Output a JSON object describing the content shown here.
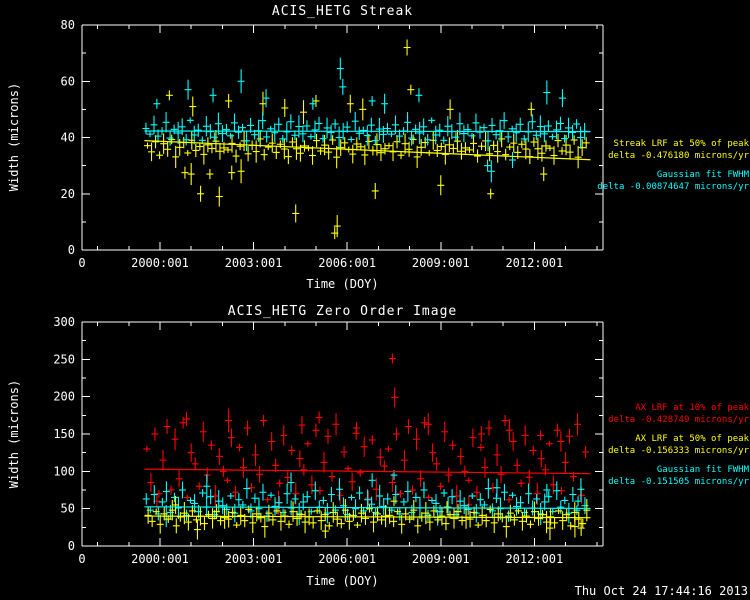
{
  "window": {
    "timestamp": "Thu Oct 24 17:44:16 2013",
    "background": "#000000"
  },
  "colors": {
    "axis": "#ffffff",
    "yellow": "#ffff00",
    "cyan": "#00ffff",
    "red": "#ff0000"
  },
  "chart_data": [
    {
      "type": "scatter",
      "title": "ACIS_HETG Streak",
      "xlabel": "Time (DOY)",
      "ylabel": "Width (microns)",
      "xlim": [
        1997.5,
        2014.2
      ],
      "ylim": [
        0,
        80
      ],
      "x_origin_label": "0",
      "x_minor": 1,
      "y_minor": 10,
      "xticks": [
        {
          "v": 2000,
          "label": "2000:001"
        },
        {
          "v": 2003,
          "label": "2003:001"
        },
        {
          "v": 2006,
          "label": "2006:001"
        },
        {
          "v": 2009,
          "label": "2009:001"
        },
        {
          "v": 2012,
          "label": "2012:001"
        }
      ],
      "yticks": [
        {
          "v": 0,
          "label": "0"
        },
        {
          "v": 20,
          "label": "20"
        },
        {
          "v": 40,
          "label": "40"
        },
        {
          "v": 60,
          "label": "60"
        },
        {
          "v": 80,
          "label": "80"
        }
      ],
      "annotations": [
        {
          "color": "#ffff00",
          "lines": [
            "Streak LRF at 50% of peak",
            "delta -0.476180 microns/yr"
          ]
        },
        {
          "color": "#00ffff",
          "lines": [
            "Gaussian fit FWHM",
            "delta -0.00874647 microns/yr"
          ]
        }
      ],
      "fit_lines": [
        {
          "color": "#ffff00",
          "x1": 1999.5,
          "y1": 38.9,
          "x2": 2013.8,
          "y2": 32.1
        },
        {
          "color": "#00ffff",
          "x1": 1999.5,
          "y1": 42.3,
          "x2": 2013.8,
          "y2": 42.1
        }
      ],
      "series": [
        {
          "name": "Streak LRF at 50% of peak",
          "color": "#ffff00",
          "x_start": 1999.6,
          "x_step": 0.129,
          "y": [
            37.1,
            34.9,
            38.5,
            33.7,
            37.8,
            35.8,
            39.3,
            33.1,
            36.5,
            38.2,
            34.5,
            39.0,
            35.4,
            36.8,
            34.0,
            37.4,
            36.1,
            38.7,
            35.1,
            36.3,
            35.6,
            37.9,
            33.4,
            36.9,
            38.8,
            34.2,
            37.2,
            35.0,
            39.5,
            33.9,
            36.6,
            38.0,
            34.7,
            37.6,
            35.9,
            33.2,
            38.4,
            36.0,
            34.4,
            37.0,
            36.2,
            33.6,
            38.9,
            35.2,
            37.3,
            34.8,
            39.1,
            33.0,
            36.4,
            38.1,
            35.7,
            34.1,
            37.7,
            36.7,
            33.8,
            38.6,
            35.3,
            37.5,
            34.6,
            36.0,
            37.1,
            34.9,
            38.5,
            33.7,
            37.8,
            35.8,
            39.3,
            33.1,
            36.5,
            38.2,
            34.5,
            39.0,
            35.4,
            36.8,
            34.0,
            37.4,
            36.1,
            38.7,
            35.1,
            36.3,
            35.6,
            37.9,
            33.4,
            36.9,
            38.8,
            34.2,
            37.2,
            35.0,
            39.5,
            33.9,
            36.6,
            38.0,
            34.7,
            37.6,
            35.9,
            33.2,
            38.4,
            36.0,
            34.4,
            37.0,
            36.2,
            33.6,
            38.9,
            35.2,
            37.3,
            34.8,
            39.1,
            33.0,
            36.4,
            38.1
          ],
          "extra_points": [
            [
              2000.3,
              55
            ],
            [
              2001.05,
              51
            ],
            [
              2002.2,
              53
            ],
            [
              2003.3,
              52
            ],
            [
              2004.0,
              50.5
            ],
            [
              2005.0,
              53
            ],
            [
              2006.5,
              50
            ],
            [
              2007.92,
              72
            ],
            [
              2008.04,
              57
            ],
            [
              2009.3,
              50
            ],
            [
              2011.9,
              50
            ],
            [
              2004.6,
              49
            ],
            [
              2006.1,
              52
            ],
            [
              2000.8,
              27.5
            ],
            [
              2001.0,
              27
            ],
            [
              2001.3,
              20
            ],
            [
              2001.6,
              27
            ],
            [
              2001.9,
              19
            ],
            [
              2002.3,
              27.5
            ],
            [
              2002.6,
              28
            ],
            [
              2004.35,
              13
            ],
            [
              2005.6,
              6
            ],
            [
              2005.68,
              8.5
            ],
            [
              2006.9,
              21
            ],
            [
              2010.6,
              20
            ],
            [
              2009.0,
              23
            ],
            [
              2012.3,
              27
            ]
          ]
        },
        {
          "name": "Gaussian fit FWHM",
          "color": "#00ffff",
          "x_start": 1999.55,
          "x_step": 0.129,
          "y": [
            43.2,
            41.2,
            44.5,
            40.5,
            42.3,
            45.4,
            39.8,
            42.9,
            41.6,
            43.8,
            39.2,
            46.1,
            40.9,
            42.6,
            39.0,
            44.0,
            42.1,
            40.1,
            44.9,
            41.4,
            42.8,
            40.6,
            45.2,
            41.9,
            43.5,
            38.8,
            44.3,
            41.0,
            42.4,
            46.0,
            40.2,
            43.1,
            41.7,
            44.7,
            39.5,
            42.0,
            45.6,
            40.8,
            43.9,
            41.3,
            44.1,
            40.3,
            42.7,
            45.0,
            39.6,
            43.4,
            41.8,
            44.8,
            40.0,
            42.2,
            43.7,
            39.3,
            45.8,
            41.5,
            42.5,
            40.7,
            44.4,
            38.9,
            43.0,
            41.1,
            43.2,
            41.2,
            44.5,
            40.5,
            42.3,
            45.4,
            39.8,
            42.9,
            41.6,
            43.8,
            39.2,
            46.1,
            40.9,
            42.6,
            39.0,
            44.0,
            42.1,
            40.1,
            44.9,
            41.4,
            42.8,
            40.6,
            45.2,
            41.9,
            43.5,
            38.8,
            44.3,
            41.0,
            42.4,
            46.0,
            40.2,
            43.1,
            41.7,
            44.7,
            39.5,
            42.0,
            45.6,
            40.8,
            43.9,
            41.3,
            44.1,
            40.3,
            42.7,
            45.0,
            39.6,
            43.4,
            41.8,
            44.8,
            40.0,
            42.2
          ],
          "extra_points": [
            [
              1999.9,
              52
            ],
            [
              2000.9,
              57
            ],
            [
              2001.7,
              55
            ],
            [
              2002.6,
              60
            ],
            [
              2003.4,
              54
            ],
            [
              2004.9,
              52
            ],
            [
              2005.78,
              64.5
            ],
            [
              2005.86,
              58
            ],
            [
              2006.8,
              53
            ],
            [
              2007.2,
              52
            ],
            [
              2008.3,
              55
            ],
            [
              2012.4,
              56
            ],
            [
              2012.9,
              54
            ],
            [
              2010.5,
              30
            ],
            [
              2010.62,
              28
            ],
            [
              2011.3,
              32
            ]
          ]
        }
      ]
    },
    {
      "type": "scatter",
      "title": "ACIS_HETG Zero Order Image",
      "xlabel": "Time (DOY)",
      "ylabel": "Width (microns)",
      "xlim": [
        1997.5,
        2014.2
      ],
      "ylim": [
        0,
        300
      ],
      "x_origin_label": "0",
      "x_minor": 1,
      "y_minor": 25,
      "xticks": [
        {
          "v": 2000,
          "label": "2000:001"
        },
        {
          "v": 2003,
          "label": "2003:001"
        },
        {
          "v": 2006,
          "label": "2006:001"
        },
        {
          "v": 2009,
          "label": "2009:001"
        },
        {
          "v": 2012,
          "label": "2012:001"
        }
      ],
      "yticks": [
        {
          "v": 0,
          "label": "0"
        },
        {
          "v": 50,
          "label": "50"
        },
        {
          "v": 100,
          "label": "100"
        },
        {
          "v": 150,
          "label": "150"
        },
        {
          "v": 200,
          "label": "200"
        },
        {
          "v": 250,
          "label": "250"
        },
        {
          "v": 300,
          "label": "300"
        }
      ],
      "annotations": [
        {
          "color": "#ff0000",
          "lines": [
            "AX LRF at 10% of peak",
            "delta -0.428749 microns/yr"
          ]
        },
        {
          "color": "#ffff00",
          "lines": [
            "AX LRF at 50% of peak",
            "delta -0.156333 microns/yr"
          ]
        },
        {
          "color": "#00ffff",
          "lines": [
            "Gaussian fit FWHM",
            "delta -0.151505 microns/yr"
          ]
        }
      ],
      "fit_lines": [
        {
          "color": "#ff0000",
          "x1": 1999.5,
          "y1": 103,
          "x2": 2013.8,
          "y2": 96.9
        },
        {
          "color": "#00ffff",
          "x1": 1999.5,
          "y1": 52.5,
          "x2": 2013.8,
          "y2": 50.3
        },
        {
          "color": "#ffff00",
          "x1": 1999.5,
          "y1": 40.1,
          "x2": 2013.8,
          "y2": 37.9
        }
      ],
      "series": [
        {
          "name": "AX LRF at 10% of peak",
          "color": "#ff0000",
          "x_start": 1999.58,
          "x_step": 0.129,
          "y": [
            130,
            85,
            150,
            70,
            115,
            160,
            75,
            143,
            90,
            165,
            65,
            125,
            110,
            80,
            153,
            95,
            135,
            67,
            120,
            100,
            88,
            145,
            72,
            132,
            105,
            158,
            78,
            122,
            96,
            168,
            62,
            140,
            108,
            84,
            148,
            92,
            128,
            70,
            117,
            102,
            137,
            82,
            155,
            74,
            112,
            147,
            93,
            163,
            68,
            126,
            104,
            86,
            151,
            98,
            133,
            64,
            142,
            76,
            119,
            107,
            130,
            85,
            150,
            70,
            115,
            160,
            75,
            143,
            90,
            165,
            65,
            125,
            110,
            80,
            153,
            95,
            135,
            67,
            120,
            100,
            88,
            145,
            72,
            132,
            105,
            158,
            78,
            122,
            96,
            168,
            62,
            140,
            108,
            84,
            148,
            92,
            128,
            70,
            117,
            102,
            137,
            82,
            155,
            74,
            112,
            147,
            93,
            163,
            68,
            126
          ],
          "extra_points": [
            [
              2007.45,
              251
            ],
            [
              2007.52,
              199
            ],
            [
              2000.85,
              170
            ],
            [
              2002.2,
              168
            ],
            [
              2004.55,
              162
            ],
            [
              2006.3,
              158
            ],
            [
              2008.6,
              163
            ],
            [
              2010.3,
              150
            ],
            [
              2012.2,
              148
            ],
            [
              2012.85,
              140
            ],
            [
              1999.9,
              60
            ],
            [
              2003.8,
              58
            ],
            [
              2009.9,
              55
            ],
            [
              2005.1,
              172
            ],
            [
              2011.2,
              155
            ]
          ]
        },
        {
          "name": "Gaussian fit FWHM",
          "color": "#00ffff",
          "x_start": 1999.56,
          "x_step": 0.129,
          "y": [
            63,
            48,
            69,
            43,
            59,
            73,
            45,
            65,
            51,
            75,
            41,
            61,
            57,
            46,
            71,
            52,
            66,
            42,
            60,
            54,
            49,
            67,
            44,
            62,
            55,
            77,
            47,
            64,
            50,
            72,
            40,
            68,
            53,
            58,
            45,
            70,
            51,
            63,
            43,
            59,
            66,
            46,
            74,
            52,
            61,
            44,
            69,
            48,
            76,
            54,
            42,
            65,
            50,
            71,
            47,
            62,
            56,
            45,
            67,
            53,
            63,
            48,
            69,
            43,
            59,
            73,
            45,
            65,
            51,
            75,
            41,
            61,
            57,
            46,
            71,
            52,
            66,
            42,
            60,
            54,
            49,
            67,
            44,
            62,
            55,
            77,
            47,
            64,
            50,
            72,
            40,
            68,
            53,
            58,
            45,
            70,
            51,
            63,
            43,
            59,
            66,
            46,
            74,
            52,
            61,
            44,
            69,
            48,
            76,
            54
          ],
          "extra_points": [
            [
              2007.5,
              95
            ],
            [
              2004.2,
              85
            ],
            [
              2006.8,
              88
            ],
            [
              2001.5,
              80
            ],
            [
              2010.8,
              78
            ],
            [
              2012.4,
              75
            ],
            [
              2000.2,
              40
            ],
            [
              2008.9,
              38
            ],
            [
              2013.4,
              60
            ]
          ]
        },
        {
          "name": "AX LRF at 50% of peak",
          "color": "#ffff00",
          "x_start": 1999.62,
          "x_step": 0.129,
          "y": [
            41,
            33,
            46,
            29,
            43,
            36,
            48,
            27,
            39,
            44,
            32,
            47,
            35,
            40,
            30,
            42,
            37,
            46,
            34,
            38,
            36,
            45,
            28,
            41,
            34,
            49,
            31,
            43,
            38,
            26,
            44,
            35,
            47,
            33,
            40,
            29,
            46,
            37,
            42,
            32,
            39,
            31,
            47,
            34,
            42,
            27,
            45,
            36,
            30,
            48,
            33,
            41,
            28,
            44,
            37,
            50,
            32,
            43,
            35,
            40,
            41,
            33,
            46,
            29,
            43,
            36,
            48,
            27,
            39,
            44,
            32,
            47,
            35,
            40,
            30,
            42,
            37,
            46,
            34,
            38,
            36,
            45,
            28,
            41,
            34,
            49,
            31,
            43,
            38,
            26,
            44,
            35,
            47,
            33,
            40,
            29,
            46,
            37,
            42,
            32,
            39,
            31,
            47,
            34,
            42,
            27,
            45,
            36,
            30,
            48
          ],
          "extra_points": [
            [
              2007.5,
              60
            ],
            [
              2001.2,
              22
            ],
            [
              2005.3,
              20
            ],
            [
              2012.5,
              24
            ],
            [
              2000.5,
              55
            ],
            [
              2009.2,
              52
            ],
            [
              2013.3,
              26
            ],
            [
              2013.5,
              24
            ]
          ]
        }
      ]
    }
  ]
}
